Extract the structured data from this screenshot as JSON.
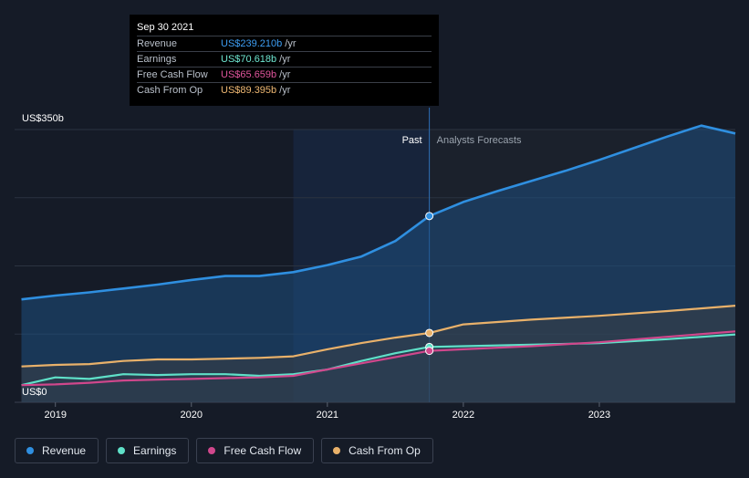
{
  "chart_data": {
    "type": "area",
    "title": "",
    "y_max_label": "US$350b",
    "y_min_label": "US$0",
    "ylim": [
      0,
      350
    ],
    "xlim": [
      2018.7,
      2024.0
    ],
    "x_ticks": [
      {
        "label": "2019",
        "value": 2019
      },
      {
        "label": "2020",
        "value": 2020
      },
      {
        "label": "2021",
        "value": 2021
      },
      {
        "label": "2022",
        "value": 2022
      },
      {
        "label": "2023",
        "value": 2023
      }
    ],
    "past_label": "Past",
    "forecast_label": "Analysts Forecasts",
    "divider_x": 2021.75,
    "highlight_start_x": 2020.75,
    "series": [
      {
        "name": "Revenue",
        "color": "#2f8fe0",
        "fill": true,
        "points": [
          [
            2018.75,
            132
          ],
          [
            2019.0,
            137
          ],
          [
            2019.25,
            141
          ],
          [
            2019.5,
            146
          ],
          [
            2019.75,
            151
          ],
          [
            2020.0,
            157
          ],
          [
            2020.25,
            162
          ],
          [
            2020.5,
            162
          ],
          [
            2020.75,
            167
          ],
          [
            2021.0,
            176
          ],
          [
            2021.25,
            187
          ],
          [
            2021.5,
            207
          ],
          [
            2021.75,
            239
          ],
          [
            2022.0,
            257
          ],
          [
            2022.25,
            271
          ],
          [
            2022.5,
            284
          ],
          [
            2022.75,
            297
          ],
          [
            2023.0,
            311
          ],
          [
            2023.25,
            326
          ],
          [
            2023.5,
            341
          ],
          [
            2023.75,
            355
          ],
          [
            2024.0,
            345
          ]
        ]
      },
      {
        "name": "Earnings",
        "color": "#5fe0c8",
        "fill": false,
        "points": [
          [
            2018.75,
            22
          ],
          [
            2018.9,
            28
          ],
          [
            2019.0,
            32
          ],
          [
            2019.25,
            30
          ],
          [
            2019.5,
            36
          ],
          [
            2019.75,
            35
          ],
          [
            2020.0,
            36
          ],
          [
            2020.25,
            36
          ],
          [
            2020.5,
            34
          ],
          [
            2020.75,
            36
          ],
          [
            2021.0,
            42
          ],
          [
            2021.25,
            53
          ],
          [
            2021.5,
            63
          ],
          [
            2021.75,
            71
          ],
          [
            2022.0,
            72
          ],
          [
            2022.5,
            74
          ],
          [
            2023.0,
            76
          ],
          [
            2023.5,
            81
          ],
          [
            2024.0,
            87
          ]
        ]
      },
      {
        "name": "Free Cash Flow",
        "color": "#d0478c",
        "fill": false,
        "points": [
          [
            2018.75,
            22
          ],
          [
            2019.0,
            23
          ],
          [
            2019.25,
            25
          ],
          [
            2019.5,
            28
          ],
          [
            2019.75,
            29
          ],
          [
            2020.0,
            30
          ],
          [
            2020.25,
            31
          ],
          [
            2020.5,
            32
          ],
          [
            2020.75,
            34
          ],
          [
            2021.0,
            42
          ],
          [
            2021.25,
            50
          ],
          [
            2021.5,
            58
          ],
          [
            2021.75,
            66
          ],
          [
            2022.0,
            68
          ],
          [
            2022.5,
            72
          ],
          [
            2023.0,
            77
          ],
          [
            2023.5,
            84
          ],
          [
            2024.0,
            91
          ]
        ]
      },
      {
        "name": "Cash From Op",
        "color": "#e9b16a",
        "fill": false,
        "points": [
          [
            2018.75,
            46
          ],
          [
            2019.0,
            48
          ],
          [
            2019.25,
            49
          ],
          [
            2019.5,
            53
          ],
          [
            2019.75,
            55
          ],
          [
            2020.0,
            55
          ],
          [
            2020.25,
            56
          ],
          [
            2020.5,
            57
          ],
          [
            2020.75,
            59
          ],
          [
            2021.0,
            68
          ],
          [
            2021.25,
            76
          ],
          [
            2021.5,
            83
          ],
          [
            2021.75,
            89
          ],
          [
            2022.0,
            100
          ],
          [
            2022.5,
            106
          ],
          [
            2023.0,
            111
          ],
          [
            2023.5,
            117
          ],
          [
            2024.0,
            124
          ]
        ]
      }
    ]
  },
  "tooltip": {
    "date": "Sep 30 2021",
    "rows": [
      {
        "label": "Revenue",
        "value": "US$239.210b",
        "unit": "/yr",
        "color": "#3d9df2"
      },
      {
        "label": "Earnings",
        "value": "US$70.618b",
        "unit": "/yr",
        "color": "#6fe8d2"
      },
      {
        "label": "Free Cash Flow",
        "value": "US$65.659b",
        "unit": "/yr",
        "color": "#e0559c"
      },
      {
        "label": "Cash From Op",
        "value": "US$89.395b",
        "unit": "/yr",
        "color": "#f0b973"
      }
    ]
  },
  "legend": [
    {
      "label": "Revenue",
      "color": "#2f8fe0"
    },
    {
      "label": "Earnings",
      "color": "#5fe0c8"
    },
    {
      "label": "Free Cash Flow",
      "color": "#d0478c"
    },
    {
      "label": "Cash From Op",
      "color": "#e9b16a"
    }
  ]
}
